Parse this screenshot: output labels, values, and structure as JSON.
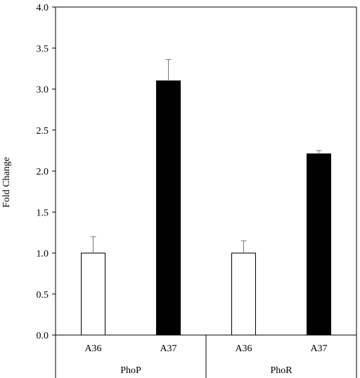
{
  "chart_data": {
    "type": "bar",
    "ylabel": "Fold Change",
    "xlabel": "",
    "title": "",
    "ylim": [
      0,
      4
    ],
    "yticks": [
      "0.0",
      "0.5",
      "1.0",
      "1.5",
      "2.0",
      "2.5",
      "3.0",
      "3.5",
      "4.0"
    ],
    "groups": [
      {
        "label": "PhoP",
        "bars": [
          {
            "category": "A36",
            "value": 1.0,
            "error": 0.2,
            "fill": "#ffffff"
          },
          {
            "category": "A37",
            "value": 3.1,
            "error": 0.26,
            "fill": "#000000"
          }
        ]
      },
      {
        "label": "PhoR",
        "bars": [
          {
            "category": "A36",
            "value": 1.0,
            "error": 0.15,
            "fill": "#ffffff"
          },
          {
            "category": "A37",
            "value": 2.21,
            "error": 0.04,
            "fill": "#000000"
          }
        ]
      }
    ],
    "grid": false,
    "legend": "none"
  }
}
